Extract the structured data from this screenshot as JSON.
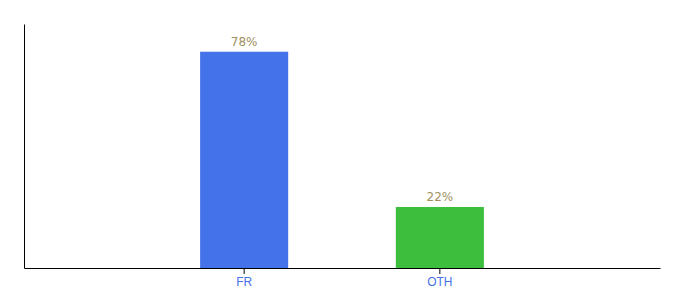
{
  "chart_data": {
    "type": "bar",
    "categories": [
      "FR",
      "OTH"
    ],
    "values": [
      78,
      22
    ],
    "value_labels": [
      "78%",
      "22%"
    ],
    "colors": [
      "#4472e8",
      "#3dbe3d"
    ],
    "ylim": [
      0,
      88
    ],
    "grid": false,
    "data_labels": true,
    "tick_labels": "x"
  }
}
